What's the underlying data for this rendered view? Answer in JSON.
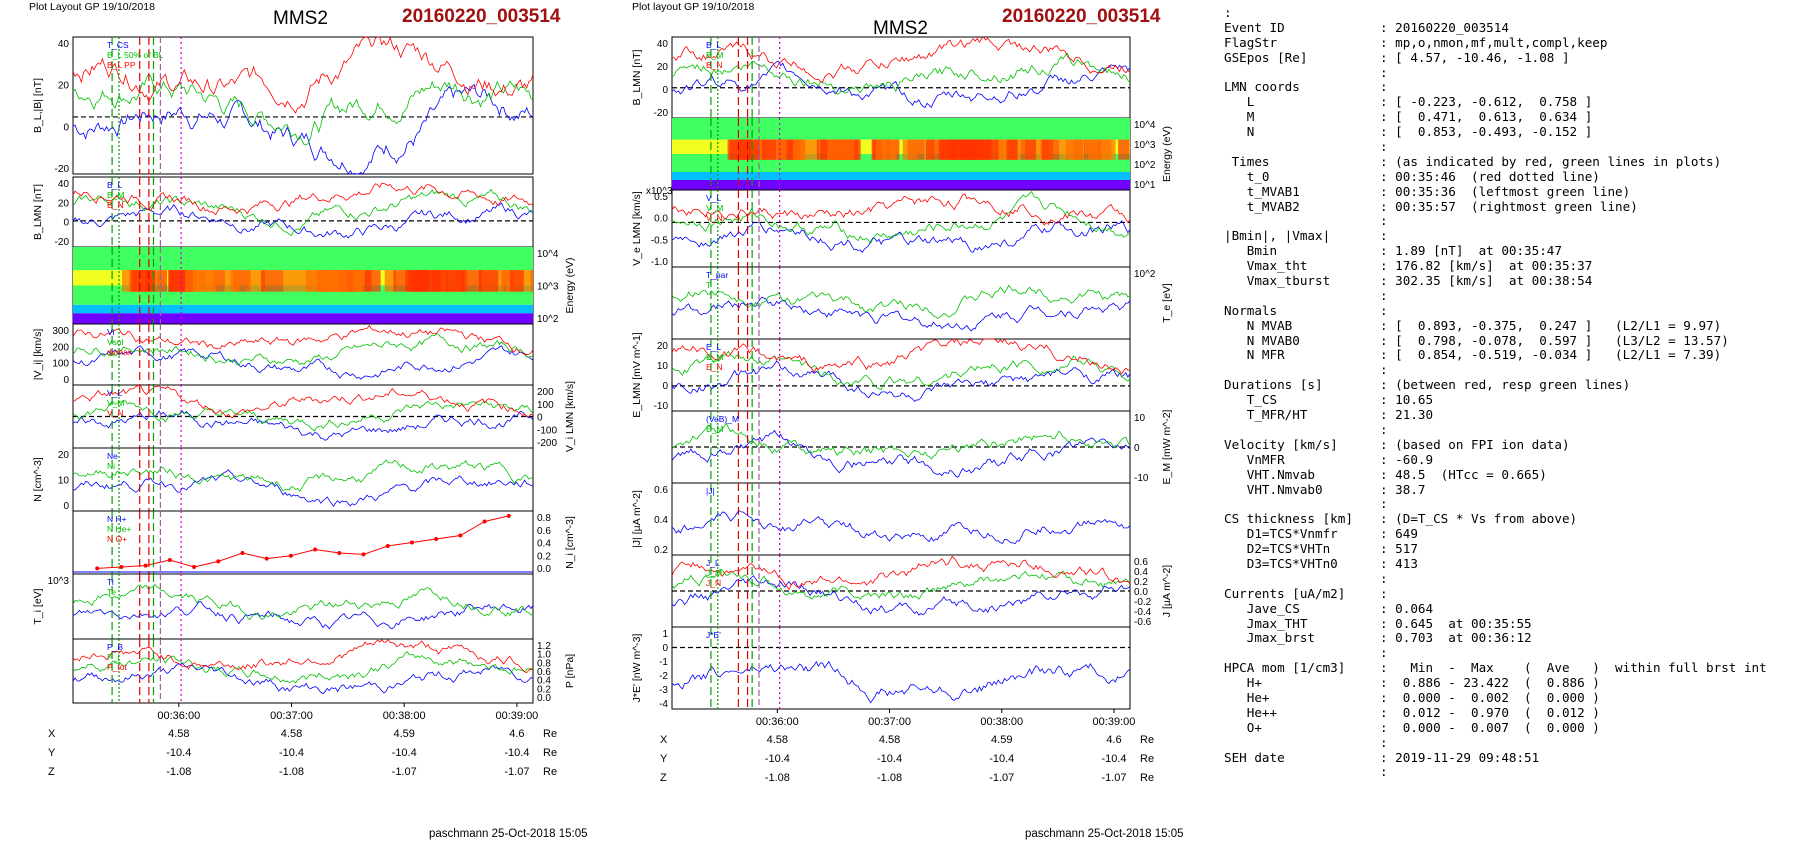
{
  "left": {
    "header": "Plot Layout GP 19/10/2018",
    "sc": "MMS2",
    "event": "20160220_003514",
    "footer": "paschmann 25-Oct-2018 15:05",
    "ticks": [
      "00:36:00",
      "00:37:00",
      "00:38:00",
      "00:39:00"
    ],
    "coord": [
      {
        "n": "X",
        "v": [
          "4.58",
          "4.58",
          "4.59",
          "4.6"
        ],
        "u": "Re"
      },
      {
        "n": "Y",
        "v": [
          "-10.4",
          "-10.4",
          "-10.4",
          "-10.4"
        ],
        "u": "Re"
      },
      {
        "n": "Z",
        "v": [
          "-1.08",
          "-1.08",
          "-1.07",
          "-1.07"
        ],
        "u": "Re"
      }
    ]
  },
  "right": {
    "header": "Plot layout GP 19/10/2018",
    "sc": "MMS2",
    "event": "20160220_003514",
    "footer": "paschmann 25-Oct-2018 15:05",
    "ticks": [
      "00:36:00",
      "00:37:00",
      "00:38:00",
      "00:39:00"
    ],
    "coord": [
      {
        "n": "X",
        "v": [
          "4.58",
          "4.58",
          "4.59",
          "4.6"
        ],
        "u": "Re"
      },
      {
        "n": "Y",
        "v": [
          "-10.4",
          "-10.4",
          "-10.4",
          "-10.4"
        ],
        "u": "Re"
      },
      {
        "n": "Z",
        "v": [
          "-1.08",
          "-1.08",
          "-1.07",
          "-1.07"
        ],
        "u": "Re"
      }
    ]
  },
  "chart_data": [
    {
      "type": "line",
      "title": "",
      "panels": [
        {
          "ylabel": "B_L,|B| [nT]",
          "yticks": [
            "40",
            "20",
            "0",
            "-20"
          ],
          "legend": [
            "T_CS",
            "B_L 50% of BL",
            "B_L PP"
          ],
          "ylim": [
            -30,
            42
          ]
        },
        {
          "ylabel": "B_LMN [nT]",
          "yticks": [
            "40",
            "20",
            "0",
            "-20"
          ],
          "legend": [
            "B_L",
            "B_M",
            "B_N"
          ],
          "ylim": [
            -25,
            42
          ]
        },
        {
          "type": "heatmap",
          "ylabel": "Energy (eV)",
          "yticks": [
            "10^4",
            "10^3",
            "10^2"
          ]
        },
        {
          "ylabel": "|V_i| [km/s]",
          "yticks": [
            "300",
            "200",
            "100",
            "0"
          ],
          "legend": [
            "Vi",
            "Vsol",
            "dvmax"
          ],
          "ylim": [
            0,
            300
          ]
        },
        {
          "ylabel": "V_i LMN [km/s]",
          "yticks": [
            "200",
            "100",
            "0",
            "-100",
            "-200"
          ],
          "legend": [
            "V_L",
            "V_M",
            "V_N"
          ],
          "ylim": [
            -250,
            250
          ]
        },
        {
          "ylabel": "N [cm^-3]",
          "yticks": [
            "20",
            "10",
            "0"
          ],
          "legend": [
            "Ne",
            "Ni"
          ],
          "ylim": [
            0,
            22
          ]
        },
        {
          "ylabel": "N_i [cm^-3]",
          "yticks": [
            "0.8",
            "0.6",
            "0.4",
            "0.2",
            "0.0"
          ],
          "legend": [
            "N H+",
            "N He+",
            "N O+"
          ],
          "ylim": [
            0,
            0.9
          ],
          "x": [
            0.5,
            1,
            1.5,
            2,
            2.5,
            3,
            3.5,
            4,
            4.5,
            5,
            5.5,
            6,
            6.5,
            7,
            7.5,
            8,
            8.5,
            9
          ],
          "values": [
            0.08,
            0.1,
            0.12,
            0.2,
            0.1,
            0.18,
            0.3,
            0.22,
            0.26,
            0.35,
            0.3,
            0.28,
            0.4,
            0.45,
            0.5,
            0.55,
            0.75,
            0.83
          ]
        },
        {
          "ylabel": "T_i [eV]",
          "yticks": [
            "10^3"
          ],
          "legend": [
            "Ti",
            "Te"
          ]
        },
        {
          "ylabel": "P [nPa]",
          "yticks": [
            "1.2",
            "1.0",
            "0.8",
            "0.6",
            "0.4",
            "0.2",
            "0.0"
          ],
          "legend": [
            "P_B",
            "P_i",
            "P_tot"
          ],
          "ylim": [
            0,
            1.3
          ]
        }
      ]
    },
    {
      "type": "line",
      "title": "",
      "panels": [
        {
          "ylabel": "B_LMN [nT]",
          "yticks": [
            "40",
            "20",
            "0",
            "-20"
          ],
          "legend": [
            "B_L",
            "B_M",
            "B_N"
          ],
          "ylim": [
            -25,
            42
          ]
        },
        {
          "type": "heatmap",
          "ylabel": "Energy (eV)",
          "yticks": [
            "10^4",
            "10^3",
            "10^2",
            "10^1"
          ]
        },
        {
          "ylabel": "V_e LMN [km/s]",
          "yticks": [
            "0.5",
            "0.0",
            "-0.5",
            "-1.0"
          ],
          "scale": "x10^3",
          "legend": [
            "V_L",
            "V_M",
            "V_N"
          ],
          "ylim": [
            -1.1,
            0.8
          ]
        },
        {
          "ylabel": "T_e [eV]",
          "yticks": [
            "10^2"
          ],
          "legend": [
            "T_par",
            "T"
          ]
        },
        {
          "ylabel": "E_LMN [mV m^-1]",
          "yticks": [
            "20",
            "10",
            "0",
            "-10"
          ],
          "legend": [
            "E_L",
            "E_M",
            "E_N"
          ],
          "ylim": [
            -15,
            28
          ]
        },
        {
          "ylabel": "E_M [mW m^-2]",
          "yticks": [
            "10",
            "0",
            "-10"
          ],
          "legend": [
            "(VeB)_M",
            "E_M"
          ],
          "ylim": [
            -15,
            15
          ]
        },
        {
          "ylabel": "|J| [µA m^-2]",
          "yticks": [
            "0.6",
            "0.4",
            "0.2"
          ],
          "legend": [
            "|J|"
          ],
          "ylim": [
            0,
            0.65
          ]
        },
        {
          "ylabel": "J [µA m^-2]",
          "yticks": [
            "0.6",
            "0.4",
            "0.2",
            "0.0",
            "-0.2",
            "-0.4",
            "-0.6"
          ],
          "legend": [
            "J_L",
            "J_M",
            "J_N"
          ],
          "ylim": [
            -0.65,
            0.65
          ]
        },
        {
          "ylabel": "J*E' [nW m^-3]",
          "yticks": [
            "1",
            "0",
            "-1",
            "-2",
            "-3",
            "-4"
          ],
          "legend": [
            "J*E'"
          ],
          "ylim": [
            -4.5,
            1.5
          ]
        }
      ]
    }
  ],
  "summary": [
    {
      "k": ":",
      "v": ""
    },
    {
      "k": "Event ID",
      "v": ": 20160220_003514"
    },
    {
      "k": "FlagStr",
      "v": ": mp,o,nmon,mf,mult,compl,keep"
    },
    {
      "k": "GSEpos [Re]",
      "v": ": [ 4.57, -10.46, -1.08 ]"
    },
    {
      "k": "",
      "v": ":"
    },
    {
      "k": "LMN coords",
      "v": ":"
    },
    {
      "k": "   L",
      "v": ": [ -0.223, -0.612,  0.758 ]"
    },
    {
      "k": "   M",
      "v": ": [  0.471,  0.613,  0.634 ]"
    },
    {
      "k": "   N",
      "v": ": [  0.853, -0.493, -0.152 ]"
    },
    {
      "k": "",
      "v": ":"
    },
    {
      "k": " Times",
      "v": ": (as indicated by red, green lines in plots)"
    },
    {
      "k": "   t_0",
      "v": ": 00:35:46  (red dotted line)"
    },
    {
      "k": "   t_MVAB1",
      "v": ": 00:35:36  (leftmost green line)"
    },
    {
      "k": "   t_MVAB2",
      "v": ": 00:35:57  (rightmost green line)"
    },
    {
      "k": "",
      "v": ":"
    },
    {
      "k": "|Bmin|, |Vmax|",
      "v": ":"
    },
    {
      "k": "   Bmin",
      "v": ": 1.89 [nT]  at 00:35:47"
    },
    {
      "k": "   Vmax_tht",
      "v": ": 176.82 [km/s]  at 00:35:37"
    },
    {
      "k": "   Vmax_tburst",
      "v": ": 302.35 [km/s]  at 00:38:54"
    },
    {
      "k": "",
      "v": ":"
    },
    {
      "k": "Normals",
      "v": ":"
    },
    {
      "k": "   N MVAB",
      "v": ": [  0.893, -0.375,  0.247 ]   (L2/L1 = 9.97)"
    },
    {
      "k": "   N MVAB0",
      "v": ": [  0.798, -0.078,  0.597 ]   (L3/L2 = 13.57)"
    },
    {
      "k": "   N MFR",
      "v": ": [  0.854, -0.519, -0.034 ]   (L2/L1 = 7.39)"
    },
    {
      "k": "",
      "v": ":"
    },
    {
      "k": "Durations [s]",
      "v": ": (between red, resp green lines)"
    },
    {
      "k": "   T_CS",
      "v": ": 10.65"
    },
    {
      "k": "   T_MFR/HT",
      "v": ": 21.30"
    },
    {
      "k": "",
      "v": ":"
    },
    {
      "k": "Velocity [km/s]",
      "v": ": (based on FPI ion data)"
    },
    {
      "k": "   VnMFR",
      "v": ": -60.9"
    },
    {
      "k": "   VHT.Nmvab",
      "v": ": 48.5  (HTcc = 0.665)"
    },
    {
      "k": "   VHT.Nmvab0",
      "v": ": 38.7"
    },
    {
      "k": "",
      "v": ":"
    },
    {
      "k": "CS thickness [km]",
      "v": ": (D=T_CS * Vs from above)"
    },
    {
      "k": "   D1=TCS*Vnmfr",
      "v": ": 649"
    },
    {
      "k": "   D2=TCS*VHTn",
      "v": ": 517"
    },
    {
      "k": "   D3=TCS*VHTn0",
      "v": ": 413"
    },
    {
      "k": "",
      "v": ":"
    },
    {
      "k": "Currents [uA/m2]",
      "v": ":"
    },
    {
      "k": "   Jave_CS",
      "v": ": 0.064"
    },
    {
      "k": "   Jmax_THT",
      "v": ": 0.645  at 00:35:55"
    },
    {
      "k": "   Jmax_brst",
      "v": ": 0.703  at 00:36:12"
    },
    {
      "k": "",
      "v": ":"
    },
    {
      "k": "HPCA mom [1/cm3]",
      "v": ":   Min  -  Max    (  Ave   )  within full brst int"
    },
    {
      "k": "   H+",
      "v": ":  0.886 - 23.422  (  0.886 )"
    },
    {
      "k": "   He+",
      "v": ":  0.000 -  0.002  (  0.000 )"
    },
    {
      "k": "   He++",
      "v": ":  0.012 -  0.970  (  0.012 )"
    },
    {
      "k": "   O+",
      "v": ":  0.000 -  0.007  (  0.000 )"
    },
    {
      "k": "",
      "v": ":"
    },
    {
      "k": "SEH date",
      "v": ": 2019-11-29 09:48:51"
    },
    {
      "k": "",
      "v": ":"
    }
  ]
}
